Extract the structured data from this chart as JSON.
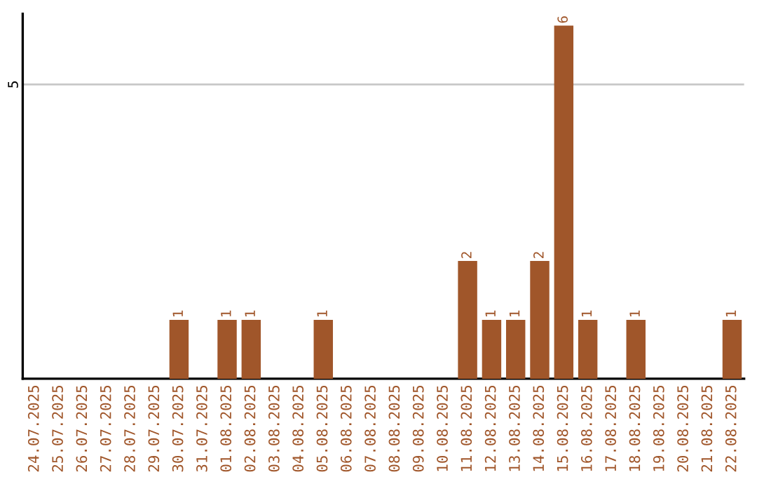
{
  "chart_data": {
    "type": "bar",
    "categories": [
      "24.07.2025",
      "25.07.2025",
      "26.07.2025",
      "27.07.2025",
      "28.07.2025",
      "29.07.2025",
      "30.07.2025",
      "31.07.2025",
      "01.08.2025",
      "02.08.2025",
      "03.08.2025",
      "04.08.2025",
      "05.08.2025",
      "06.08.2025",
      "07.08.2025",
      "08.08.2025",
      "09.08.2025",
      "10.08.2025",
      "11.08.2025",
      "12.08.2025",
      "13.08.2025",
      "14.08.2025",
      "15.08.2025",
      "16.08.2025",
      "17.08.2025",
      "18.08.2025",
      "19.08.2025",
      "20.08.2025",
      "21.08.2025",
      "22.08.2025"
    ],
    "values": [
      0,
      0,
      0,
      0,
      0,
      0,
      1,
      0,
      1,
      1,
      0,
      0,
      1,
      0,
      0,
      0,
      0,
      0,
      2,
      1,
      1,
      2,
      6,
      1,
      0,
      1,
      0,
      0,
      0,
      1
    ],
    "value_labels": [
      null,
      null,
      null,
      null,
      null,
      null,
      "1",
      null,
      "1",
      "1",
      null,
      null,
      "1",
      null,
      null,
      null,
      null,
      null,
      "2",
      "1",
      "1",
      "2",
      "6",
      "1",
      null,
      "1",
      null,
      null,
      null,
      "1"
    ],
    "color": "#a0562a",
    "ylim": [
      0,
      6.2
    ],
    "yticks": [
      5
    ],
    "grid": "y"
  }
}
